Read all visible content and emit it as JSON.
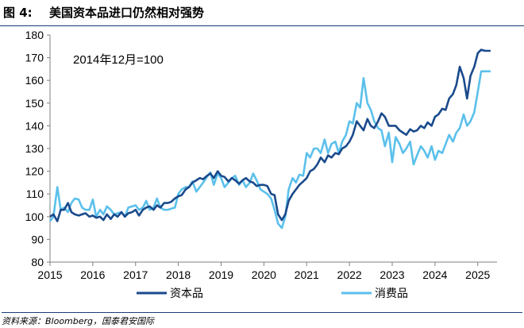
{
  "figure": {
    "number": "图 4:",
    "title": "美国资本品进口仍然相对强势",
    "source": "资料来源：Bloomberg，国泰君安国际"
  },
  "chart_data": {
    "type": "line",
    "title": "",
    "annotation": "2014年12月=100",
    "xlabel": "",
    "ylabel": "",
    "xlim": [
      2015.0,
      2025.45
    ],
    "ylim": [
      80,
      180
    ],
    "yticks": [
      80,
      90,
      100,
      110,
      120,
      130,
      140,
      150,
      160,
      170,
      180
    ],
    "xticks": [
      "2015",
      "2016",
      "2017",
      "2018",
      "2019",
      "2020",
      "2021",
      "2022",
      "2023",
      "2024",
      "2025"
    ],
    "grid": false,
    "legend_position": "bottom",
    "colors": {
      "capital": "#1a4a8c",
      "consumer": "#5bc0eb"
    },
    "series": [
      {
        "name": "资本品",
        "color": "#1a4a8c",
        "points": [
          [
            2015.0,
            100
          ],
          [
            2015.08,
            101
          ],
          [
            2015.17,
            98
          ],
          [
            2015.25,
            103
          ],
          [
            2015.33,
            103
          ],
          [
            2015.42,
            106
          ],
          [
            2015.5,
            102
          ],
          [
            2015.58,
            101
          ],
          [
            2015.67,
            100.5
          ],
          [
            2015.75,
            101
          ],
          [
            2015.83,
            101.5
          ],
          [
            2015.92,
            100
          ],
          [
            2016.0,
            100.5
          ],
          [
            2016.08,
            99.5
          ],
          [
            2016.17,
            100
          ],
          [
            2016.25,
            98.5
          ],
          [
            2016.33,
            101
          ],
          [
            2016.42,
            99
          ],
          [
            2016.5,
            101
          ],
          [
            2016.58,
            100
          ],
          [
            2016.67,
            102
          ],
          [
            2016.75,
            100
          ],
          [
            2016.83,
            101.5
          ],
          [
            2016.92,
            102
          ],
          [
            2017.0,
            103
          ],
          [
            2017.08,
            100.5
          ],
          [
            2017.17,
            103
          ],
          [
            2017.25,
            104
          ],
          [
            2017.33,
            104.5
          ],
          [
            2017.42,
            103
          ],
          [
            2017.5,
            105
          ],
          [
            2017.58,
            104
          ],
          [
            2017.67,
            106
          ],
          [
            2017.75,
            106
          ],
          [
            2017.83,
            106.5
          ],
          [
            2017.92,
            108
          ],
          [
            2018.0,
            109
          ],
          [
            2018.08,
            109.5
          ],
          [
            2018.17,
            112
          ],
          [
            2018.25,
            113
          ],
          [
            2018.33,
            115
          ],
          [
            2018.42,
            116
          ],
          [
            2018.5,
            117
          ],
          [
            2018.58,
            116.5
          ],
          [
            2018.67,
            118
          ],
          [
            2018.75,
            119
          ],
          [
            2018.83,
            117
          ],
          [
            2018.92,
            120
          ],
          [
            2019.0,
            118
          ],
          [
            2019.08,
            117.5
          ],
          [
            2019.17,
            115.5
          ],
          [
            2019.25,
            117
          ],
          [
            2019.33,
            116
          ],
          [
            2019.42,
            114.5
          ],
          [
            2019.5,
            116
          ],
          [
            2019.58,
            117
          ],
          [
            2019.67,
            115.5
          ],
          [
            2019.75,
            115
          ],
          [
            2019.83,
            113.5
          ],
          [
            2019.92,
            114
          ],
          [
            2020.0,
            114
          ],
          [
            2020.08,
            113.5
          ],
          [
            2020.17,
            110
          ],
          [
            2020.25,
            109.5
          ],
          [
            2020.33,
            101
          ],
          [
            2020.42,
            98.5
          ],
          [
            2020.5,
            101
          ],
          [
            2020.58,
            107
          ],
          [
            2020.67,
            110
          ],
          [
            2020.75,
            112
          ],
          [
            2020.83,
            114
          ],
          [
            2020.92,
            115.5
          ],
          [
            2021.0,
            117
          ],
          [
            2021.08,
            120
          ],
          [
            2021.17,
            121
          ],
          [
            2021.25,
            123
          ],
          [
            2021.33,
            126
          ],
          [
            2021.42,
            124
          ],
          [
            2021.5,
            127
          ],
          [
            2021.58,
            126
          ],
          [
            2021.67,
            128
          ],
          [
            2021.75,
            127.5
          ],
          [
            2021.83,
            130
          ],
          [
            2021.92,
            131
          ],
          [
            2022.0,
            133
          ],
          [
            2022.08,
            136
          ],
          [
            2022.17,
            142
          ],
          [
            2022.25,
            140
          ],
          [
            2022.33,
            138
          ],
          [
            2022.42,
            143
          ],
          [
            2022.5,
            140
          ],
          [
            2022.58,
            139
          ],
          [
            2022.67,
            142
          ],
          [
            2022.75,
            145.5
          ],
          [
            2022.83,
            144
          ],
          [
            2022.92,
            140
          ],
          [
            2023.0,
            140
          ],
          [
            2023.08,
            140
          ],
          [
            2023.17,
            138
          ],
          [
            2023.25,
            137
          ],
          [
            2023.33,
            136
          ],
          [
            2023.42,
            138.5
          ],
          [
            2023.5,
            137.5
          ],
          [
            2023.58,
            138
          ],
          [
            2023.67,
            140
          ],
          [
            2023.75,
            139
          ],
          [
            2023.83,
            141.5
          ],
          [
            2023.92,
            140
          ],
          [
            2024.0,
            144
          ],
          [
            2024.08,
            145
          ],
          [
            2024.17,
            147.5
          ],
          [
            2024.25,
            147
          ],
          [
            2024.33,
            152
          ],
          [
            2024.42,
            154
          ],
          [
            2024.5,
            158
          ],
          [
            2024.58,
            166
          ],
          [
            2024.67,
            161
          ],
          [
            2024.75,
            152
          ],
          [
            2024.83,
            162
          ],
          [
            2024.92,
            166
          ],
          [
            2025.0,
            172
          ],
          [
            2025.08,
            173.5
          ],
          [
            2025.17,
            173
          ],
          [
            2025.25,
            173
          ],
          [
            2025.3,
            173
          ]
        ]
      },
      {
        "name": "消费品",
        "color": "#5bc0eb",
        "points": [
          [
            2015.0,
            98
          ],
          [
            2015.08,
            100
          ],
          [
            2015.17,
            113
          ],
          [
            2015.25,
            103
          ],
          [
            2015.33,
            104
          ],
          [
            2015.42,
            102
          ],
          [
            2015.5,
            106
          ],
          [
            2015.58,
            108
          ],
          [
            2015.67,
            107.5
          ],
          [
            2015.75,
            104
          ],
          [
            2015.83,
            103
          ],
          [
            2015.92,
            103
          ],
          [
            2016.0,
            107.5
          ],
          [
            2016.08,
            100
          ],
          [
            2016.17,
            103
          ],
          [
            2016.25,
            101
          ],
          [
            2016.33,
            104.5
          ],
          [
            2016.42,
            103
          ],
          [
            2016.5,
            101
          ],
          [
            2016.58,
            101.5
          ],
          [
            2016.67,
            102
          ],
          [
            2016.75,
            100
          ],
          [
            2016.83,
            104
          ],
          [
            2016.92,
            104.5
          ],
          [
            2017.0,
            105
          ],
          [
            2017.08,
            103
          ],
          [
            2017.17,
            104
          ],
          [
            2017.25,
            107
          ],
          [
            2017.33,
            103
          ],
          [
            2017.42,
            104
          ],
          [
            2017.5,
            108
          ],
          [
            2017.58,
            104
          ],
          [
            2017.67,
            103
          ],
          [
            2017.75,
            103
          ],
          [
            2017.83,
            103.5
          ],
          [
            2017.92,
            104
          ],
          [
            2018.0,
            110
          ],
          [
            2018.08,
            112
          ],
          [
            2018.17,
            113
          ],
          [
            2018.25,
            113
          ],
          [
            2018.33,
            115.5
          ],
          [
            2018.42,
            111
          ],
          [
            2018.5,
            113
          ],
          [
            2018.58,
            115
          ],
          [
            2018.67,
            117.5
          ],
          [
            2018.75,
            119.5
          ],
          [
            2018.83,
            114
          ],
          [
            2018.92,
            119
          ],
          [
            2019.0,
            117
          ],
          [
            2019.08,
            113
          ],
          [
            2019.17,
            115
          ],
          [
            2019.25,
            117
          ],
          [
            2019.33,
            118
          ],
          [
            2019.42,
            114
          ],
          [
            2019.5,
            116
          ],
          [
            2019.58,
            113
          ],
          [
            2019.67,
            115
          ],
          [
            2019.75,
            119
          ],
          [
            2019.83,
            116
          ],
          [
            2019.92,
            112
          ],
          [
            2020.0,
            111
          ],
          [
            2020.08,
            110
          ],
          [
            2020.17,
            108
          ],
          [
            2020.25,
            103
          ],
          [
            2020.33,
            97
          ],
          [
            2020.42,
            95
          ],
          [
            2020.5,
            100
          ],
          [
            2020.58,
            112
          ],
          [
            2020.67,
            117
          ],
          [
            2020.75,
            115
          ],
          [
            2020.83,
            118.5
          ],
          [
            2020.92,
            118
          ],
          [
            2021.0,
            128
          ],
          [
            2021.08,
            126
          ],
          [
            2021.17,
            130
          ],
          [
            2021.25,
            130
          ],
          [
            2021.33,
            128
          ],
          [
            2021.42,
            134
          ],
          [
            2021.5,
            128
          ],
          [
            2021.58,
            132
          ],
          [
            2021.67,
            133
          ],
          [
            2021.75,
            128
          ],
          [
            2021.83,
            133
          ],
          [
            2021.92,
            136
          ],
          [
            2022.0,
            142
          ],
          [
            2022.08,
            141
          ],
          [
            2022.17,
            150
          ],
          [
            2022.25,
            148
          ],
          [
            2022.33,
            161
          ],
          [
            2022.42,
            150
          ],
          [
            2022.5,
            147
          ],
          [
            2022.58,
            142
          ],
          [
            2022.67,
            139
          ],
          [
            2022.75,
            138
          ],
          [
            2022.83,
            131
          ],
          [
            2022.92,
            137
          ],
          [
            2023.0,
            124
          ],
          [
            2023.08,
            135
          ],
          [
            2023.17,
            132
          ],
          [
            2023.25,
            128
          ],
          [
            2023.33,
            130
          ],
          [
            2023.42,
            133
          ],
          [
            2023.5,
            123
          ],
          [
            2023.58,
            127
          ],
          [
            2023.67,
            131
          ],
          [
            2023.75,
            129
          ],
          [
            2023.83,
            126
          ],
          [
            2023.92,
            131
          ],
          [
            2024.0,
            125
          ],
          [
            2024.08,
            129
          ],
          [
            2024.17,
            128
          ],
          [
            2024.25,
            132
          ],
          [
            2024.33,
            136
          ],
          [
            2024.42,
            133
          ],
          [
            2024.5,
            137
          ],
          [
            2024.58,
            139
          ],
          [
            2024.67,
            145
          ],
          [
            2024.75,
            140
          ],
          [
            2024.83,
            142
          ],
          [
            2024.92,
            146
          ],
          [
            2025.0,
            155
          ],
          [
            2025.08,
            164
          ],
          [
            2025.17,
            164
          ],
          [
            2025.25,
            164
          ],
          [
            2025.3,
            164
          ]
        ]
      }
    ]
  }
}
